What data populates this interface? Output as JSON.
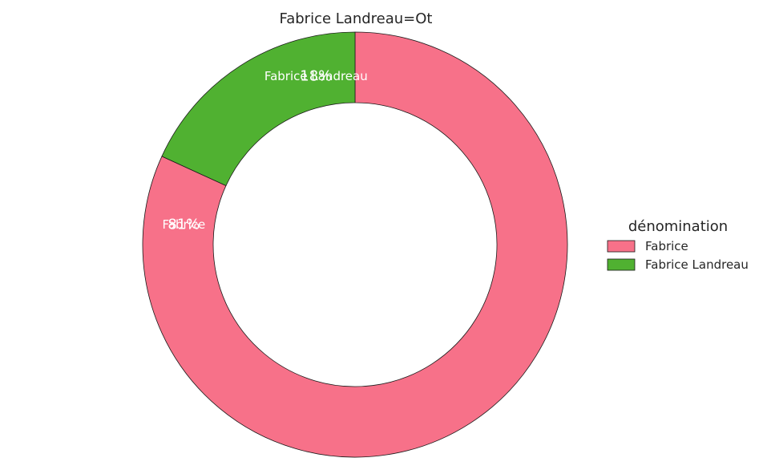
{
  "chart_data": {
    "type": "pie",
    "title": "Fabrice Landreau=Ot",
    "donut": true,
    "start_angle_deg": 90,
    "direction": "clockwise",
    "slices": [
      {
        "label": "Fabrice",
        "value": 81,
        "pct_label": "81%",
        "color": "#f77189"
      },
      {
        "label": "Fabrice Landreau",
        "value": 18,
        "pct_label": "18%",
        "color": "#50b131"
      }
    ],
    "legend": {
      "title": "dénomination",
      "position": "right",
      "entries": [
        "Fabrice",
        "Fabrice Landreau"
      ]
    }
  }
}
